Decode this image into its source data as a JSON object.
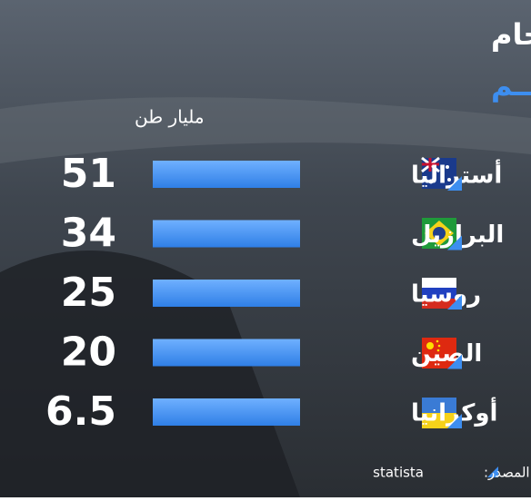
{
  "chart_data": {
    "type": "bar",
    "title": "أكبر احتياطيات الحديد الخام",
    "subtitle": "فـــي العـــالـــم",
    "unit_label": "مليار طن",
    "categories": [
      "أستراليا",
      "البرازيل",
      "روسيا",
      "الصين",
      "أوكرانيا"
    ],
    "values": [
      51,
      34,
      25,
      20,
      6.5
    ],
    "color": "#3d8ef0",
    "source_label": "المصدر:",
    "source": "statista"
  }
}
